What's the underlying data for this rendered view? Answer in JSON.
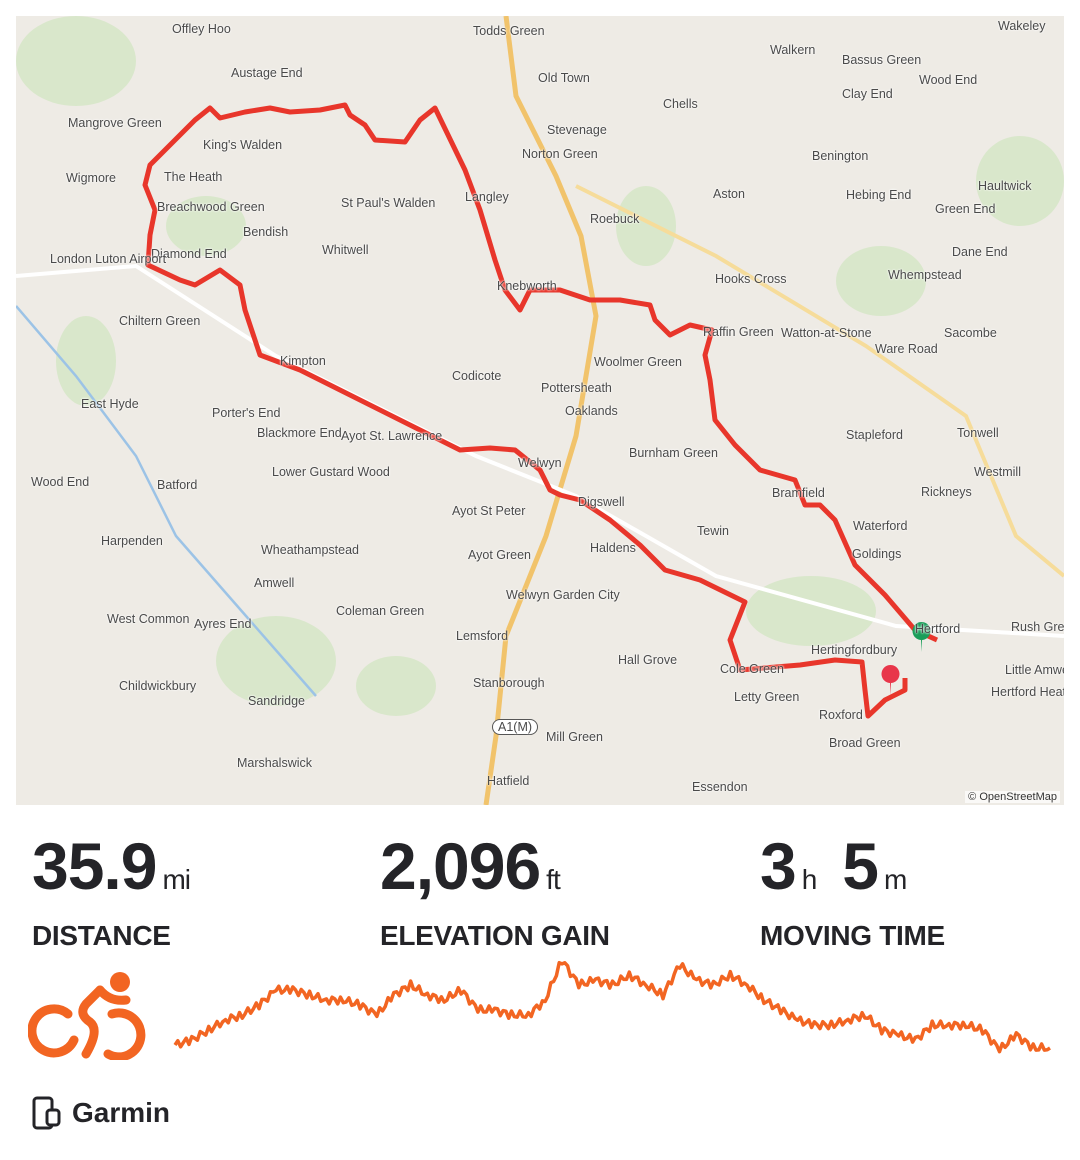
{
  "map": {
    "attribution": "© OpenStreetMap",
    "route_color": "#e8362b",
    "start_marker_color": "#1a9e5a",
    "end_marker_color": "#e8364a",
    "places": [
      "Offley Hoo",
      "Todds Green",
      "Old Town",
      "Walkern",
      "Bassus Green",
      "Clay End",
      "Wood End",
      "Wakeley",
      "Austage End",
      "Chells",
      "Stevenage",
      "Mangrove Green",
      "King's Walden",
      "Norton Green",
      "Benington",
      "Wigmore",
      "The Heath",
      "Breachwood Green",
      "St Paul's Walden",
      "Langley",
      "Aston",
      "Hebing End",
      "Green End",
      "Haultwick",
      "Roebuck",
      "Bendish",
      "Whitwell",
      "Diamond End",
      "Dane End",
      "London Luton Airport",
      "Hooks Cross",
      "Whempstead",
      "Chiltern Green",
      "Knebworth",
      "Raffin Green",
      "Watton-at-Stone",
      "Sacombe",
      "Ware Road",
      "Kimpton",
      "Codicote",
      "Woolmer Green",
      "Pottersheath",
      "East Hyde",
      "Porter's End",
      "Oaklands",
      "Stapleford",
      "Tonwell",
      "Blackmore End",
      "Ayot St. Lawrence",
      "Burnham Green",
      "Welwyn",
      "Westmill",
      "Wood End",
      "Batford",
      "Lower Gustard Wood",
      "Bramfield",
      "Rickneys",
      "Ayot St Peter",
      "Digswell",
      "Waterford",
      "Harpenden",
      "Wheathampstead",
      "Haldens",
      "Tewin",
      "Goldings",
      "Ayot Green",
      "Amwell",
      "Welwyn Garden City",
      "Coleman Green",
      "Hertford",
      "Rush Green",
      "West Common",
      "Ayres End",
      "Lemsford",
      "Hertingfordbury",
      "Hall Grove",
      "Cole Green",
      "Little Amwell",
      "Hertford Heath",
      "Childwickbury",
      "Stanborough",
      "Letty Green",
      "Roxford",
      "Sandridge",
      "A1(M)",
      "Mill Green",
      "Broad Green",
      "Marshalswick",
      "Hatfield",
      "Essendon"
    ]
  },
  "stats": [
    {
      "value": "35.9",
      "unit": "mi",
      "label": "DISTANCE"
    },
    {
      "value": "2,096",
      "unit": "ft",
      "label": "ELEVATION GAIN"
    },
    {
      "value": "3",
      "unit": "h",
      "value2": "5",
      "unit2": "m",
      "label": "MOVING TIME"
    }
  ],
  "activity": {
    "type_icon": "cycling-icon",
    "accent": "#f26522"
  },
  "elevation_profile": [
    15,
    20,
    30,
    40,
    45,
    55,
    70,
    70,
    65,
    60,
    60,
    55,
    45,
    65,
    75,
    65,
    60,
    70,
    50,
    50,
    45,
    45,
    60,
    100,
    75,
    80,
    75,
    85,
    75,
    65,
    95,
    80,
    75,
    85,
    75,
    60,
    50,
    40,
    35,
    35,
    40,
    45,
    30,
    25,
    20,
    35,
    35,
    35,
    30,
    10,
    25,
    12,
    12
  ],
  "device": {
    "icon": "device-icon",
    "label": "Garmin"
  }
}
